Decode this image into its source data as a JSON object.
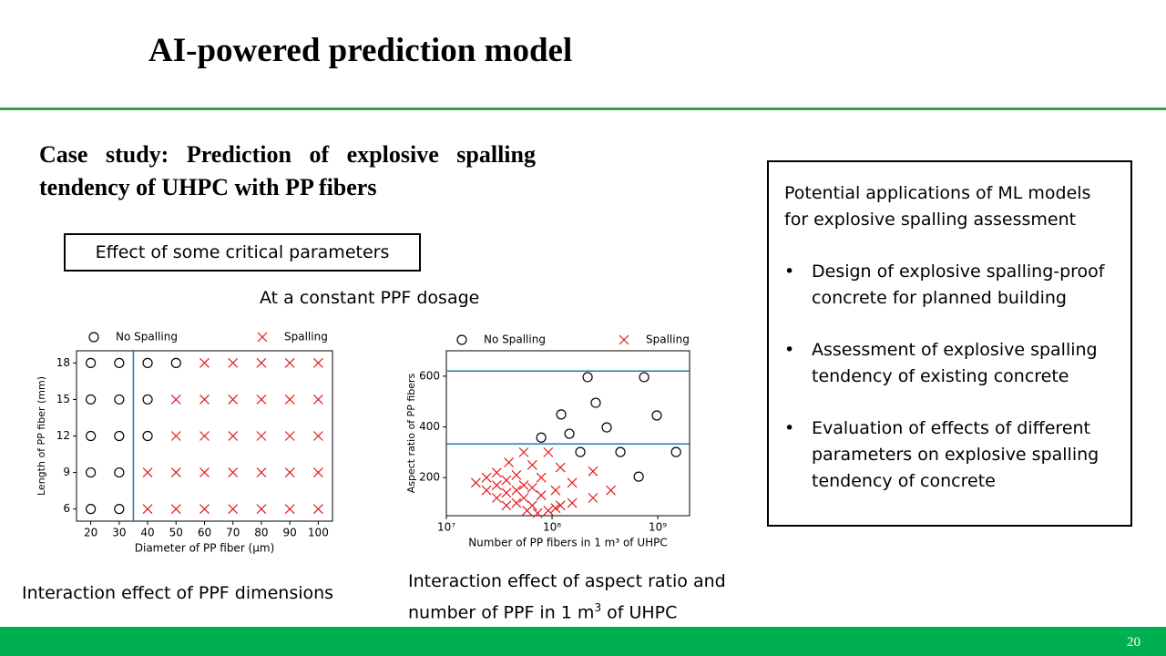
{
  "header": {
    "title": "AI-powered prediction model"
  },
  "subtitle": "Case study: Prediction of explosive spalling tendency of UHPC with PP fibers",
  "box_label": "Effect of some critical parameters",
  "condition": "At a constant PPF dosage",
  "caption_left": "Interaction effect of PPF dimensions",
  "caption_right": {
    "before": "Interaction effect of aspect ratio and number of PPF in 1 m",
    "sup": "3",
    "after": " of UHPC"
  },
  "side_box": {
    "heading": "Potential applications of ML models for explosive spalling assessment",
    "bullets": [
      "Design of explosive spalling-proof concrete for planned building",
      "Assessment of explosive spalling tendency of existing concrete",
      "Evaluation of effects of different parameters on explosive spalling tendency of concrete"
    ]
  },
  "page_number": "20",
  "chart_data": [
    {
      "type": "scatter",
      "xlabel": "Diameter of PP fiber (μm)",
      "ylabel": "Length of PP fiber (mm)",
      "xlim": [
        15,
        105
      ],
      "xticks": [
        20,
        30,
        40,
        50,
        60,
        70,
        80,
        90,
        100
      ],
      "ylim": [
        5,
        19
      ],
      "yticks": [
        6,
        9,
        12,
        15,
        18
      ],
      "vlines": [
        35
      ],
      "line_color": "#1f77b4",
      "series": [
        {
          "name": "No Spalling",
          "marker": "o",
          "color": "#000000",
          "x": [
            20,
            30,
            40,
            50,
            20,
            30,
            40,
            20,
            30,
            40,
            20,
            30,
            20,
            30
          ],
          "values": [
            18,
            18,
            18,
            18,
            15,
            15,
            15,
            12,
            12,
            12,
            9,
            9,
            6,
            6
          ]
        },
        {
          "name": "Spalling",
          "marker": "x",
          "color": "#e41a1c",
          "x": [
            60,
            70,
            80,
            90,
            100,
            50,
            60,
            70,
            80,
            90,
            100,
            50,
            60,
            70,
            80,
            90,
            100,
            40,
            50,
            60,
            70,
            80,
            90,
            100,
            40,
            50,
            60,
            70,
            80,
            90,
            100
          ],
          "values": [
            18,
            18,
            18,
            18,
            18,
            15,
            15,
            15,
            15,
            15,
            15,
            12,
            12,
            12,
            12,
            12,
            12,
            9,
            9,
            9,
            9,
            9,
            9,
            9,
            6,
            6,
            6,
            6,
            6,
            6,
            6
          ]
        }
      ]
    },
    {
      "type": "scatter",
      "xlabel": "Number of PP fibers in 1 m³ of UHPC",
      "ylabel": "Aspect ratio of PP fibers",
      "xscale": "log",
      "xlim": [
        10000000,
        2000000000
      ],
      "xticks": [
        {
          "value": 10000000,
          "label": "10⁷"
        },
        {
          "value": 100000000,
          "label": "10⁸"
        },
        {
          "value": 1000000000,
          "label": "10⁹"
        }
      ],
      "ylim": [
        50,
        700
      ],
      "yticks": [
        200,
        400,
        600
      ],
      "hlines": [
        620,
        333
      ],
      "line_color": "#1f77b4",
      "series": [
        {
          "name": "No Spalling",
          "marker": "o",
          "color": "#000000",
          "x": [
            79000000,
            122000000,
            146000000,
            185000000,
            217000000,
            259000000,
            329000000,
            443000000,
            660000000,
            743000000,
            980000000,
            1490000000
          ],
          "values": [
            358,
            449,
            373,
            301,
            596,
            495,
            398,
            301,
            204,
            596,
            445,
            301
          ]
        },
        {
          "name": "Spalling",
          "marker": "x",
          "color": "#e41a1c",
          "x": [
            19000000,
            24000000,
            24000000,
            30000000,
            30000000,
            30000000,
            39000000,
            37000000,
            37000000,
            37000000,
            46000000,
            46000000,
            46000000,
            54000000,
            54000000,
            54000000,
            58000000,
            65000000,
            65000000,
            65000000,
            73000000,
            79000000,
            79000000,
            92000000,
            92000000,
            108000000,
            108000000,
            120000000,
            120000000,
            155000000,
            155000000,
            244000000,
            244000000,
            360000000
          ],
          "values": [
            180,
            200,
            150,
            220,
            170,
            120,
            260,
            190,
            140,
            90,
            210,
            150,
            100,
            300,
            170,
            120,
            70,
            250,
            160,
            90,
            60,
            200,
            130,
            300,
            70,
            150,
            80,
            240,
            90,
            180,
            100,
            225,
            120,
            150
          ]
        }
      ]
    }
  ]
}
